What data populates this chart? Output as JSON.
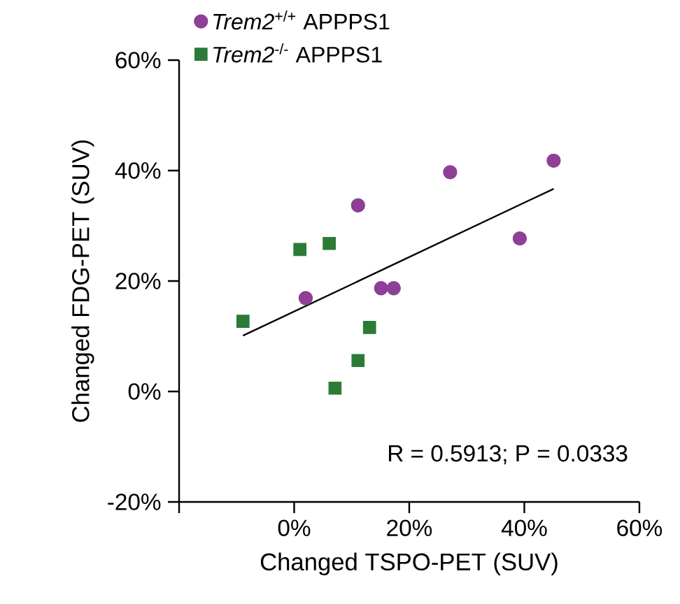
{
  "chart_data": {
    "type": "scatter",
    "xlabel": "Changed TSPO-PET (SUV)",
    "ylabel": "Changed FDG-PET (SUV)",
    "xlim": [
      -20,
      60
    ],
    "ylim": [
      -20,
      60
    ],
    "xticks": [
      {
        "value": -20,
        "label": null
      },
      {
        "value": 0,
        "label": "0%"
      },
      {
        "value": 20,
        "label": "20%"
      },
      {
        "value": 40,
        "label": "40%"
      },
      {
        "value": 60,
        "label": "60%"
      }
    ],
    "yticks": [
      {
        "value": -20,
        "label": "-20%"
      },
      {
        "value": 0,
        "label": "0%"
      },
      {
        "value": 20,
        "label": "20%"
      },
      {
        "value": 40,
        "label": "40%"
      },
      {
        "value": 60,
        "label": "60%"
      }
    ],
    "grid": false,
    "legend": "top left",
    "series": [
      {
        "name": "*Trem2*$^{+/+}$ APPPS1",
        "color": "#8e3f97",
        "marker": "circle",
        "x": [
          2.0,
          11.1,
          15.1,
          17.3,
          27.1,
          39.2,
          45.1
        ],
        "values": [
          16.9,
          33.7,
          18.7,
          18.7,
          39.7,
          27.7,
          41.8
        ]
      },
      {
        "name": "*Trem2*$^{-/-}$ APPPS1",
        "color": "#2b7a36",
        "marker": "square",
        "x": [
          -8.9,
          1.0,
          6.1,
          7.1,
          11.1,
          13.1
        ],
        "values": [
          12.7,
          25.7,
          26.8,
          0.6,
          5.6,
          11.6
        ]
      },
      {
        "type": "line",
        "color": "#000000",
        "marker": "none",
        "line_style": "solid",
        "x": [
          -8.9,
          45.1
        ],
        "values": [
          10.1,
          36.7
        ]
      }
    ],
    "annotations": [
      "R = 0.5913; P = 0.0333"
    ]
  }
}
